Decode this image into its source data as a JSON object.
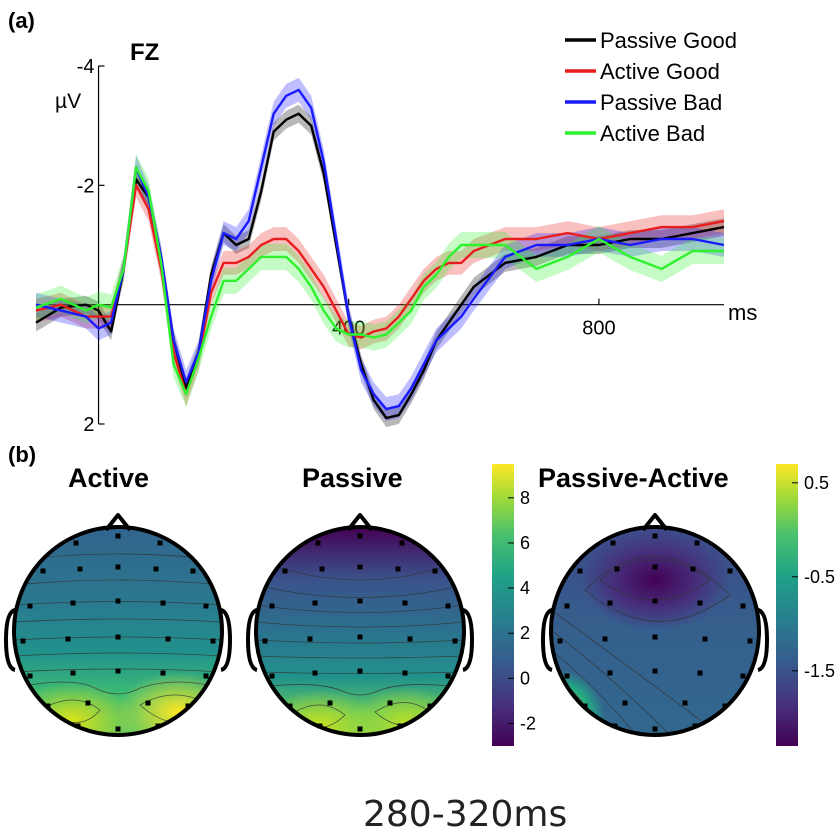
{
  "panel_a_label": "(a)",
  "panel_b_label": "(b)",
  "chart_data": [
    {
      "type": "line",
      "title": "FZ",
      "ylabel": "µV",
      "xlabel": "ms",
      "ylim": [
        2,
        -4
      ],
      "y_reversed": true,
      "xlim": [
        -100,
        1000
      ],
      "xticks": [
        {
          "v": 400,
          "label": "400"
        },
        {
          "v": 800,
          "label": "800"
        }
      ],
      "yticks": [
        {
          "v": -4,
          "label": "-4"
        },
        {
          "v": -2,
          "label": "-2"
        },
        {
          "v": 2,
          "label": "2"
        }
      ],
      "legend_position": "top-right",
      "series": [
        {
          "name": "Passive Good",
          "color": "#000000",
          "band": 0.15,
          "x": [
            -100,
            -60,
            -20,
            0,
            20,
            40,
            60,
            80,
            100,
            120,
            140,
            160,
            180,
            200,
            220,
            240,
            260,
            280,
            300,
            320,
            340,
            360,
            380,
            400,
            420,
            440,
            460,
            480,
            500,
            520,
            540,
            560,
            580,
            600,
            650,
            700,
            750,
            800,
            850,
            900,
            950,
            1000
          ],
          "y": [
            0.3,
            0.05,
            0.0,
            0.1,
            0.45,
            -0.6,
            -2.1,
            -1.8,
            -0.8,
            0.6,
            1.4,
            0.8,
            -0.5,
            -1.2,
            -1.0,
            -1.1,
            -1.9,
            -2.9,
            -3.1,
            -3.2,
            -3.0,
            -2.2,
            -1.0,
            0.2,
            1.0,
            1.6,
            1.9,
            1.85,
            1.5,
            1.1,
            0.6,
            0.3,
            0.0,
            -0.3,
            -0.7,
            -0.8,
            -1.0,
            -1.0,
            -1.1,
            -1.1,
            -1.2,
            -1.3
          ]
        },
        {
          "name": "Active Good",
          "color": "#e81e1e",
          "band": 0.2,
          "x": [
            -100,
            -60,
            -20,
            0,
            20,
            40,
            60,
            80,
            100,
            120,
            140,
            160,
            180,
            200,
            220,
            240,
            260,
            280,
            300,
            320,
            340,
            360,
            380,
            400,
            420,
            440,
            460,
            480,
            500,
            520,
            540,
            560,
            580,
            600,
            650,
            700,
            750,
            800,
            850,
            900,
            950,
            1000
          ],
          "y": [
            0.1,
            0.0,
            0.2,
            0.2,
            0.2,
            -0.6,
            -2.0,
            -1.6,
            -0.6,
            0.8,
            1.5,
            0.9,
            -0.2,
            -0.7,
            -0.7,
            -0.8,
            -1.0,
            -1.1,
            -1.1,
            -0.9,
            -0.6,
            -0.3,
            0.1,
            0.5,
            0.55,
            0.45,
            0.4,
            0.2,
            -0.1,
            -0.4,
            -0.6,
            -0.7,
            -0.7,
            -0.9,
            -1.1,
            -1.1,
            -1.2,
            -1.1,
            -1.2,
            -1.3,
            -1.3,
            -1.4
          ]
        },
        {
          "name": "Passive Bad",
          "color": "#1a1aff",
          "band": 0.2,
          "x": [
            -100,
            -60,
            -20,
            0,
            20,
            40,
            60,
            80,
            100,
            120,
            140,
            160,
            180,
            200,
            220,
            240,
            260,
            280,
            300,
            320,
            340,
            360,
            380,
            400,
            420,
            440,
            460,
            480,
            500,
            520,
            540,
            560,
            580,
            600,
            650,
            700,
            750,
            800,
            850,
            900,
            950,
            1000
          ],
          "y": [
            0.0,
            0.1,
            0.2,
            0.4,
            0.3,
            -0.6,
            -2.3,
            -1.8,
            -0.8,
            0.6,
            1.3,
            0.8,
            -0.4,
            -1.2,
            -1.1,
            -1.4,
            -2.3,
            -3.2,
            -3.5,
            -3.6,
            -3.3,
            -2.4,
            -1.1,
            0.2,
            1.1,
            1.5,
            1.75,
            1.7,
            1.4,
            1.0,
            0.6,
            0.4,
            0.2,
            -0.1,
            -0.8,
            -1.0,
            -1.0,
            -1.1,
            -1.0,
            -1.1,
            -1.1,
            -1.0
          ]
        },
        {
          "name": "Active Bad",
          "color": "#2ef22e",
          "band": 0.22,
          "x": [
            -100,
            -60,
            -20,
            0,
            20,
            40,
            60,
            80,
            100,
            120,
            140,
            160,
            180,
            200,
            220,
            240,
            260,
            280,
            300,
            320,
            340,
            360,
            380,
            400,
            420,
            440,
            460,
            480,
            500,
            520,
            540,
            560,
            580,
            600,
            650,
            700,
            750,
            800,
            850,
            900,
            950,
            1000
          ],
          "y": [
            0.05,
            -0.1,
            0.1,
            0.0,
            0.05,
            -0.6,
            -2.3,
            -1.9,
            -0.7,
            1.0,
            1.5,
            0.9,
            0.2,
            -0.4,
            -0.4,
            -0.6,
            -0.8,
            -0.8,
            -0.8,
            -0.6,
            -0.3,
            0.1,
            0.4,
            0.5,
            0.5,
            0.55,
            0.5,
            0.3,
            0.1,
            -0.3,
            -0.5,
            -0.8,
            -1.0,
            -1.0,
            -1.0,
            -0.6,
            -0.8,
            -1.1,
            -0.8,
            -0.6,
            -0.9,
            -0.9
          ]
        }
      ]
    },
    {
      "type": "heatmap",
      "title": "Active",
      "colorscale": "viridis",
      "colorbar_ticks": [
        {
          "v": 8,
          "label": "8"
        },
        {
          "v": 6,
          "label": "6"
        },
        {
          "v": 4,
          "label": "4"
        },
        {
          "v": 2,
          "label": "2"
        },
        {
          "v": 0,
          "label": "0"
        },
        {
          "v": -2,
          "label": "-2"
        }
      ],
      "colorbar_range": [
        -3,
        9.5
      ],
      "map": [
        {
          "label": "frontal",
          "value": 3.0
        },
        {
          "label": "central",
          "value": 4.0
        },
        {
          "label": "parietal",
          "value": 6.3
        },
        {
          "label": "occipital",
          "value": 8.9
        }
      ]
    },
    {
      "type": "heatmap",
      "title": "Passive",
      "colorscale": "viridis",
      "colorbar_shared_with": "Active",
      "map": [
        {
          "label": "frontal",
          "value": -2.2
        },
        {
          "label": "central",
          "value": 2.5
        },
        {
          "label": "parietal",
          "value": 5.5
        },
        {
          "label": "occipital",
          "value": 8.5
        }
      ]
    },
    {
      "type": "heatmap",
      "title": "Passive-Active",
      "colorscale": "viridis",
      "colorbar_ticks": [
        {
          "v": 0.5,
          "label": "0.5"
        },
        {
          "v": -0.5,
          "label": "-0.5"
        },
        {
          "v": -1.5,
          "label": "-1.5"
        }
      ],
      "colorbar_range": [
        -2.3,
        0.7
      ],
      "map": [
        {
          "label": "frontal",
          "value": -2.2
        },
        {
          "label": "central",
          "value": -1.3
        },
        {
          "label": "left-occipital",
          "value": 0.5
        },
        {
          "label": "right-occipital",
          "value": -1.2
        }
      ]
    }
  ],
  "caption": "280-320ms"
}
